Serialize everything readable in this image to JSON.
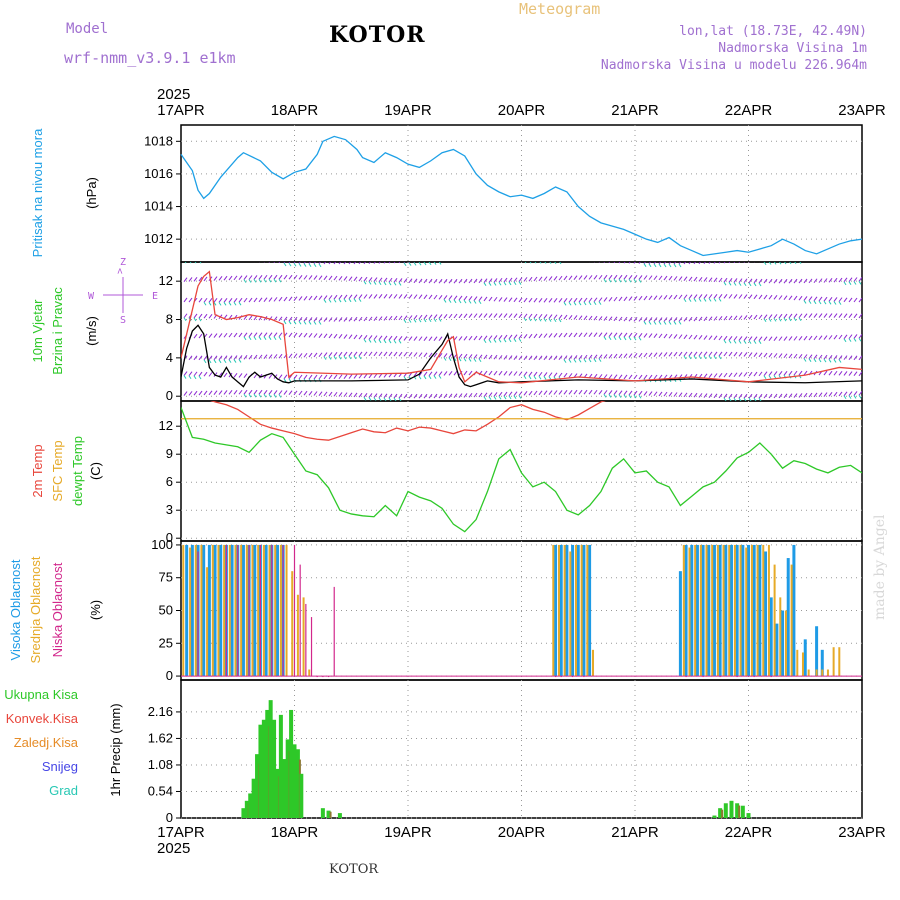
{
  "header": {
    "title": "KOTOR",
    "meteogram": "Meteogram",
    "model_label": "Model",
    "model_version": "wrf-nmm_v3.9.1  e1km",
    "lonlat": "lon,lat (18.73E, 42.49N)",
    "elevation": "Nadmorska Visina 1m",
    "model_elevation": "Nadmorska Visina u modelu 226.964m",
    "footer": "KOTOR",
    "watermark": "made by Angel"
  },
  "colors": {
    "pressure": "#1ea0e6",
    "temp2m": "#e8463c",
    "sfc": "#e6aa28",
    "dewpt": "#2ec828",
    "hi_cloud": "#1e9be6",
    "mid_cloud": "#e6aa28",
    "low_cloud": "#d2288c",
    "rain": "#2ec828",
    "convective": "#e8463c",
    "freezing": "#e68c28",
    "snow": "#4646e6",
    "hail": "#28c8b4",
    "wind_barb": "#8c28d2",
    "wind_speed": "#000000"
  },
  "chart_data": [
    {
      "type": "line",
      "panel": "pressure",
      "ylabel_main": "Pritisak na nivou mora",
      "ylabel_unit": "(hPa)",
      "ylim": [
        1010.6,
        1019.0
      ],
      "yticks": [
        1012,
        1014,
        1016,
        1018
      ],
      "ytick_labels": [
        "1012",
        "1014",
        "1016",
        "1018"
      ],
      "x_year_top": "2025",
      "x_year_bottom": "2025",
      "xticks": [
        "17APR",
        "18APR",
        "19APR",
        "20APR",
        "21APR",
        "22APR",
        "23APR"
      ],
      "series": [
        {
          "x": [
            0.0,
            0.1,
            0.15,
            0.2,
            0.25,
            0.35,
            0.5,
            0.55,
            0.7,
            0.8,
            0.9,
            1.0,
            1.1,
            1.2,
            1.25,
            1.35,
            1.45,
            1.55,
            1.6,
            1.7,
            1.8,
            1.9,
            2.0,
            2.1,
            2.2,
            2.3,
            2.4,
            2.5,
            2.6,
            2.7,
            2.8,
            2.9,
            3.0,
            3.1,
            3.2,
            3.3,
            3.4,
            3.5,
            3.6,
            3.7,
            3.8,
            3.9,
            4.0,
            4.1,
            4.2,
            4.3,
            4.4,
            4.5,
            4.6,
            4.7,
            4.8,
            4.9,
            5.0,
            5.1,
            5.2,
            5.3,
            5.4,
            5.5,
            5.6,
            5.7,
            5.8,
            5.9,
            6.0
          ],
          "y": [
            1017.2,
            1016.2,
            1015.0,
            1014.5,
            1014.8,
            1015.8,
            1017.0,
            1017.3,
            1016.8,
            1016.1,
            1015.7,
            1016.1,
            1016.3,
            1017.2,
            1018.0,
            1018.3,
            1018.1,
            1017.5,
            1017.0,
            1016.7,
            1017.3,
            1017.0,
            1016.6,
            1016.4,
            1016.8,
            1017.3,
            1017.5,
            1017.1,
            1016.0,
            1015.3,
            1014.9,
            1014.6,
            1014.7,
            1014.5,
            1014.8,
            1015.2,
            1014.9,
            1014.0,
            1013.4,
            1013.0,
            1012.8,
            1012.6,
            1012.3,
            1012.0,
            1011.8,
            1012.1,
            1011.6,
            1011.3,
            1011.0,
            1011.1,
            1011.2,
            1011.3,
            1011.2,
            1011.4,
            1011.6,
            1012.0,
            1011.7,
            1011.3,
            1011.1,
            1011.4,
            1011.7,
            1011.9,
            1012.0
          ]
        }
      ]
    },
    {
      "type": "line",
      "panel": "wind",
      "ylabel_main": "10m Vjetar",
      "ylabel_sub": "Brzina i Pravac",
      "ylabel_unit": "(m/s)",
      "ylim": [
        -0.5,
        14.0
      ],
      "yticks": [
        0,
        4,
        8,
        12
      ],
      "ytick_labels": [
        "0",
        "4",
        "8",
        "12"
      ],
      "compass": {
        "n": "Z",
        "s": "S",
        "e": "E",
        "w": "W"
      },
      "series": [
        {
          "name": "speed",
          "x": [
            0.0,
            0.05,
            0.1,
            0.15,
            0.2,
            0.25,
            0.3,
            0.35,
            0.4,
            0.45,
            0.5,
            0.55,
            0.6,
            0.65,
            0.7,
            0.75,
            0.8,
            0.85,
            0.9,
            0.95,
            1.0,
            1.5,
            2.0,
            2.1,
            2.2,
            2.3,
            2.35,
            2.4,
            2.45,
            2.5,
            2.55,
            2.6,
            2.7,
            2.8,
            3.0,
            3.5,
            4.0,
            4.5,
            5.0,
            5.5,
            6.0
          ],
          "y": [
            2.0,
            5.0,
            6.8,
            7.4,
            6.5,
            3.0,
            2.2,
            2.0,
            3.0,
            2.0,
            1.5,
            1.0,
            2.0,
            2.5,
            2.0,
            2.2,
            2.4,
            1.8,
            1.5,
            1.4,
            1.6,
            1.6,
            1.7,
            2.3,
            4.0,
            5.4,
            6.5,
            4.0,
            2.0,
            1.2,
            1.0,
            1.2,
            1.6,
            1.4,
            1.5,
            1.7,
            1.6,
            1.8,
            1.5,
            1.4,
            1.6
          ]
        },
        {
          "name": "gust",
          "x": [
            0.0,
            0.1,
            0.15,
            0.2,
            0.25,
            0.3,
            0.4,
            0.5,
            0.6,
            0.7,
            0.8,
            0.9,
            0.95,
            1.0,
            1.5,
            2.0,
            2.2,
            2.3,
            2.35,
            2.4,
            2.45,
            2.5,
            2.6,
            2.8,
            3.0,
            3.5,
            4.0,
            4.5,
            5.0,
            5.5,
            5.8,
            6.0
          ],
          "y": [
            4.0,
            9.0,
            11.5,
            12.5,
            13.0,
            8.5,
            8.0,
            8.2,
            8.5,
            8.3,
            8.0,
            7.5,
            2.0,
            2.5,
            2.3,
            2.4,
            2.8,
            4.8,
            5.8,
            6.2,
            3.0,
            1.5,
            2.5,
            1.5,
            1.4,
            2.0,
            1.6,
            2.0,
            1.5,
            2.2,
            3.0,
            2.8
          ]
        }
      ]
    },
    {
      "type": "line",
      "panel": "temperature",
      "ylabel_main": "2m Temp",
      "ylabel_sub": "SFC Temp",
      "ylabel_sub2": "dewpt Temp",
      "ylabel_unit": "(C)",
      "ylim": [
        -0.3,
        14.7
      ],
      "yticks": [
        0,
        3,
        6,
        9,
        12
      ],
      "ytick_labels": [
        "0",
        "3",
        "6",
        "9",
        "12"
      ],
      "series": [
        {
          "name": "2m",
          "x": [
            0.0,
            0.1,
            0.2,
            0.3,
            0.4,
            0.5,
            0.6,
            0.7,
            0.8,
            0.9,
            1.0,
            1.1,
            1.2,
            1.3,
            1.4,
            1.5,
            1.6,
            1.7,
            1.8,
            1.9,
            2.0,
            2.1,
            2.2,
            2.3,
            2.4,
            2.5,
            2.6,
            2.7,
            2.8,
            2.9,
            3.0,
            3.1,
            3.2,
            3.3,
            3.4,
            3.5,
            3.6,
            3.7,
            3.8,
            4.0
          ],
          "y": [
            17.0,
            16.0,
            15.0,
            14.6,
            14.3,
            13.8,
            13.0,
            12.2,
            11.8,
            11.5,
            11.2,
            10.8,
            10.6,
            10.5,
            10.9,
            11.3,
            11.7,
            11.4,
            11.3,
            11.8,
            11.5,
            11.9,
            11.8,
            11.5,
            11.2,
            11.6,
            11.5,
            12.2,
            13.0,
            14.0,
            14.3,
            13.8,
            13.5,
            13.0,
            12.7,
            13.2,
            13.9,
            14.6,
            15.0,
            15.5
          ]
        },
        {
          "name": "sfc",
          "x": [
            0.0,
            6.0
          ],
          "y": [
            12.8,
            12.8
          ]
        },
        {
          "name": "dewpt",
          "x": [
            0.0,
            0.1,
            0.2,
            0.3,
            0.4,
            0.5,
            0.6,
            0.7,
            0.8,
            0.9,
            1.0,
            1.1,
            1.2,
            1.3,
            1.4,
            1.5,
            1.6,
            1.7,
            1.8,
            1.9,
            2.0,
            2.1,
            2.2,
            2.3,
            2.4,
            2.5,
            2.6,
            2.7,
            2.8,
            2.9,
            3.0,
            3.1,
            3.2,
            3.3,
            3.4,
            3.5,
            3.6,
            3.7,
            3.8,
            3.9,
            4.0,
            4.1,
            4.2,
            4.3,
            4.4,
            4.5,
            4.6,
            4.7,
            4.8,
            4.9,
            5.0,
            5.1,
            5.2,
            5.3,
            5.4,
            5.5,
            5.6,
            5.7,
            5.8,
            5.9,
            6.0
          ],
          "y": [
            14.0,
            10.8,
            10.6,
            10.2,
            10.0,
            9.8,
            9.2,
            10.5,
            11.2,
            10.8,
            9.0,
            7.2,
            6.8,
            5.4,
            3.0,
            2.6,
            2.4,
            2.3,
            3.5,
            2.4,
            5.0,
            4.4,
            4.0,
            3.2,
            1.5,
            0.7,
            2.0,
            5.0,
            8.5,
            9.5,
            7.0,
            5.5,
            6.0,
            5.0,
            3.0,
            2.5,
            3.5,
            5.0,
            7.5,
            8.5,
            7.0,
            7.2,
            6.0,
            5.5,
            3.5,
            4.5,
            5.5,
            6.0,
            7.2,
            8.6,
            9.2,
            10.2,
            9.0,
            7.5,
            8.3,
            8.0,
            7.4,
            7.0,
            7.6,
            7.8,
            7.0
          ]
        }
      ]
    },
    {
      "type": "bar",
      "panel": "cloud",
      "ylabel_main": "Visoka Oblacnost",
      "ylabel_sub": "Srednja Oblacnost",
      "ylabel_sub2": "Niska Oblacnost",
      "ylabel_unit": "(%)",
      "ylim": [
        -3,
        103
      ],
      "yticks": [
        0,
        25,
        50,
        75,
        100
      ],
      "ytick_labels": [
        "0",
        "25",
        "50",
        "75",
        "100"
      ],
      "series": [
        {
          "name": "high",
          "x": [
            0.05,
            0.1,
            0.15,
            0.2,
            0.25,
            0.3,
            0.35,
            0.4,
            0.45,
            0.5,
            0.55,
            0.6,
            0.65,
            0.7,
            0.75,
            0.8,
            0.85,
            0.9,
            3.3,
            3.35,
            3.4,
            3.45,
            3.5,
            3.55,
            3.6,
            4.4,
            4.45,
            4.5,
            4.55,
            4.6,
            4.65,
            4.7,
            4.75,
            4.8,
            4.85,
            4.9,
            4.95,
            5.0,
            5.05,
            5.1,
            5.15,
            5.2,
            5.25,
            5.3,
            5.35,
            5.4,
            5.5,
            5.6,
            5.65
          ],
          "y": [
            100,
            100,
            100,
            100,
            100,
            100,
            100,
            100,
            100,
            100,
            100,
            100,
            100,
            100,
            100,
            100,
            100,
            100,
            100,
            100,
            100,
            100,
            100,
            100,
            100,
            80,
            100,
            100,
            100,
            100,
            100,
            100,
            100,
            100,
            100,
            100,
            100,
            100,
            100,
            100,
            95,
            60,
            40,
            50,
            90,
            100,
            28,
            38,
            20
          ]
        },
        {
          "name": "mid",
          "x": [
            0.02,
            0.08,
            0.13,
            0.18,
            0.23,
            0.28,
            0.33,
            0.38,
            0.43,
            0.48,
            0.53,
            0.58,
            0.63,
            0.68,
            0.73,
            0.78,
            0.83,
            0.88,
            0.93,
            0.98,
            1.03,
            1.08,
            1.13,
            3.28,
            3.33,
            3.38,
            3.43,
            3.48,
            3.53,
            3.58,
            3.63,
            4.43,
            4.48,
            4.53,
            4.58,
            4.63,
            4.68,
            4.73,
            4.78,
            4.83,
            4.88,
            4.93,
            4.98,
            5.03,
            5.08,
            5.13,
            5.18,
            5.23,
            5.28,
            5.33,
            5.38,
            5.43,
            5.48,
            5.53,
            5.6,
            5.65,
            5.7,
            5.75,
            5.8
          ],
          "y": [
            100,
            98,
            100,
            100,
            83,
            100,
            100,
            100,
            100,
            100,
            100,
            100,
            100,
            100,
            100,
            100,
            100,
            100,
            100,
            80,
            62,
            60,
            5,
            100,
            100,
            100,
            95,
            100,
            100,
            100,
            20,
            100,
            98,
            100,
            100,
            100,
            100,
            100,
            100,
            100,
            100,
            100,
            98,
            100,
            100,
            100,
            100,
            85,
            60,
            50,
            85,
            20,
            18,
            5,
            5,
            5,
            5,
            22,
            22
          ]
        },
        {
          "name": "low",
          "x": [
            0.15,
            0.4,
            0.5,
            0.6,
            0.7,
            0.8,
            0.9,
            1.0,
            1.05,
            1.1,
            1.15,
            1.2,
            1.25,
            1.3,
            1.35,
            3.3,
            3.35,
            3.45,
            3.55,
            4.45,
            4.6,
            4.75,
            4.9,
            5.05,
            5.2
          ],
          "y": [
            95,
            100,
            100,
            100,
            100,
            100,
            100,
            100,
            85,
            55,
            45,
            0,
            0,
            0,
            68,
            0,
            0,
            0,
            0,
            0,
            0,
            0,
            0,
            0,
            0
          ]
        }
      ]
    },
    {
      "type": "bar",
      "panel": "precipitation",
      "ylabel_main": "1hr Precip",
      "ylabel_unit": "(mm)",
      "legend": [
        "Ukupna Kisa",
        "Konvek.Kisa",
        "Zaledj.Kisa",
        "Snijeg",
        "Grad"
      ],
      "ylim": [
        0,
        2.81
      ],
      "yticks": [
        0,
        0.54,
        1.08,
        1.62,
        2.16
      ],
      "ytick_labels": [
        "0",
        "0.54",
        "1.08",
        "1.62",
        "2.16"
      ],
      "series": [
        {
          "name": "total",
          "x": [
            0.55,
            0.58,
            0.61,
            0.64,
            0.67,
            0.7,
            0.73,
            0.76,
            0.79,
            0.82,
            0.85,
            0.88,
            0.91,
            0.94,
            0.97,
            1.0,
            1.03,
            1.06,
            1.25,
            1.3,
            1.4,
            4.7,
            4.75,
            4.8,
            4.85,
            4.9,
            4.95,
            5.0
          ],
          "y": [
            0.2,
            0.35,
            0.5,
            0.8,
            1.3,
            1.9,
            2.0,
            2.2,
            2.4,
            2.0,
            1.0,
            2.1,
            1.2,
            1.6,
            2.2,
            1.5,
            1.4,
            0.9,
            0.2,
            0.15,
            0.1,
            0.05,
            0.2,
            0.3,
            0.35,
            0.3,
            0.25,
            0.1
          ]
        }
      ]
    }
  ]
}
